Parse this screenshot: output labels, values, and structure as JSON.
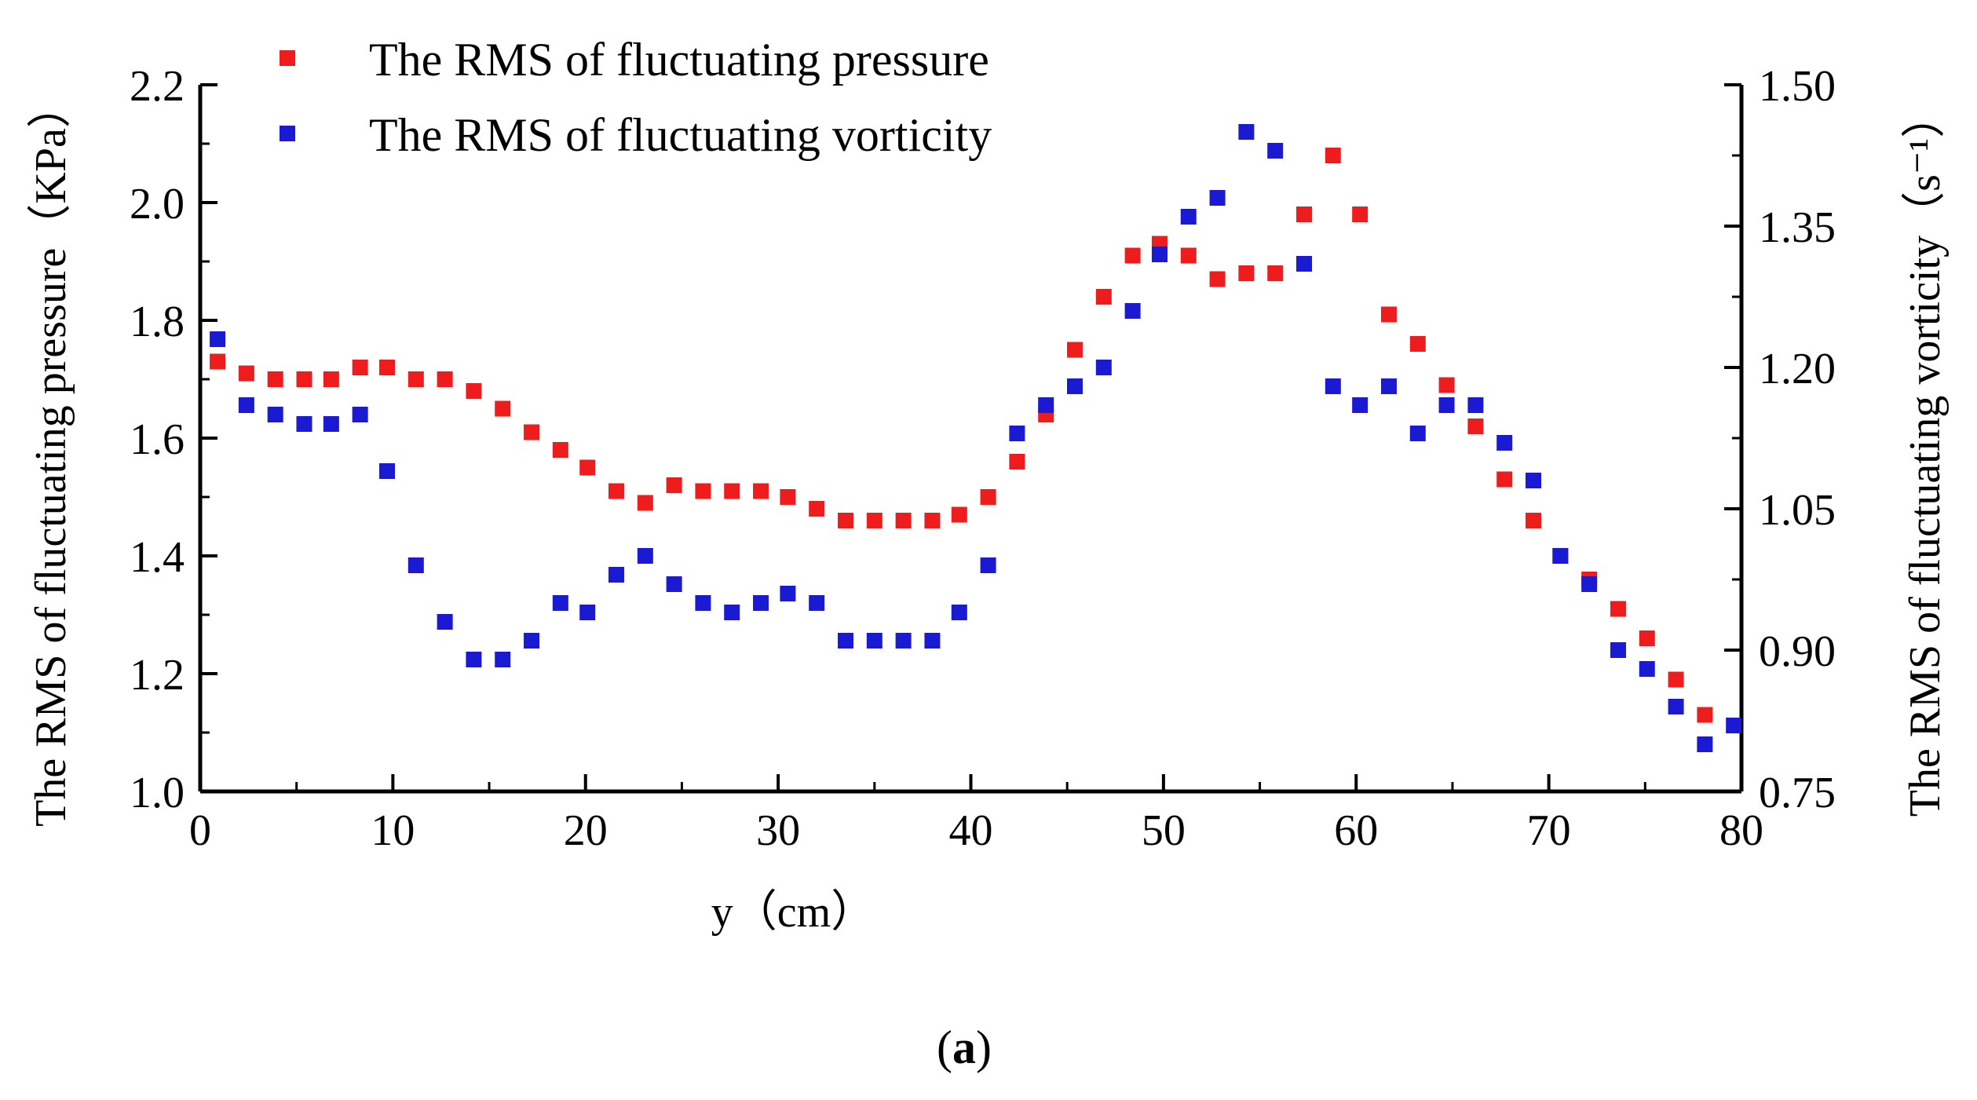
{
  "chart_data": {
    "type": "scatter",
    "xlabel": "y（cm）",
    "ylabel_left": "The RMS of fluctuating pressure（KPa）",
    "ylabel_right": "The RMS of fluctuating vorticity（s⁻¹）",
    "caption_open": "(",
    "caption_label": "a",
    "caption_close": ")",
    "xlim": [
      0,
      80
    ],
    "ylim_left": [
      1.0,
      2.2
    ],
    "ylim_right": [
      0.75,
      1.5
    ],
    "x_ticks": [
      "0",
      "10",
      "20",
      "30",
      "40",
      "50",
      "60",
      "70",
      "80"
    ],
    "y_left_ticks": [
      "1.0",
      "1.2",
      "1.4",
      "1.6",
      "1.8",
      "2.0",
      "2.2"
    ],
    "y_right_ticks": [
      "0.75",
      "0.90",
      "1.05",
      "1.20",
      "1.35",
      "1.50"
    ],
    "legend_position": "top-left",
    "series": [
      {
        "name": "The RMS of fluctuating pressure",
        "color": "#ee1c1c",
        "axis": "left",
        "x": [
          0.9,
          2.4,
          3.9,
          5.4,
          6.8,
          8.3,
          9.7,
          11.2,
          12.7,
          14.2,
          15.7,
          17.2,
          18.7,
          20.1,
          21.6,
          23.1,
          24.6,
          26.1,
          27.6,
          29.1,
          30.5,
          32.0,
          33.5,
          35.0,
          36.5,
          38.0,
          39.4,
          40.9,
          42.4,
          43.9,
          45.4,
          46.9,
          48.4,
          49.8,
          51.3,
          52.8,
          54.3,
          55.8,
          57.3,
          58.8,
          60.2,
          61.7,
          63.2,
          64.7,
          66.2,
          67.7,
          69.2,
          70.6,
          72.1,
          73.6,
          75.1,
          76.6,
          78.1
        ],
        "values": [
          1.73,
          1.71,
          1.7,
          1.7,
          1.7,
          1.72,
          1.72,
          1.7,
          1.7,
          1.68,
          1.65,
          1.61,
          1.58,
          1.55,
          1.51,
          1.49,
          1.52,
          1.51,
          1.51,
          1.51,
          1.5,
          1.48,
          1.46,
          1.46,
          1.46,
          1.46,
          1.47,
          1.5,
          1.56,
          1.64,
          1.75,
          1.84,
          1.91,
          1.93,
          1.91,
          1.87,
          1.88,
          1.88,
          1.98,
          2.08,
          1.98,
          1.81,
          1.76,
          1.69,
          1.62,
          1.53,
          1.46,
          1.4,
          1.36,
          1.31,
          1.26,
          1.19,
          1.13
        ]
      },
      {
        "name": "The RMS of fluctuating vorticity",
        "color": "#1a1ad2",
        "axis": "right",
        "x": [
          0.9,
          2.4,
          3.9,
          5.4,
          6.8,
          8.3,
          9.7,
          11.2,
          12.7,
          14.2,
          15.7,
          17.2,
          18.7,
          20.1,
          21.6,
          23.1,
          24.6,
          26.1,
          27.6,
          29.1,
          30.5,
          32.0,
          33.5,
          35.0,
          36.5,
          38.0,
          39.4,
          40.9,
          42.4,
          43.9,
          45.4,
          46.9,
          48.4,
          49.8,
          51.3,
          52.8,
          54.3,
          55.8,
          57.3,
          58.8,
          60.2,
          61.7,
          63.2,
          64.7,
          66.2,
          67.7,
          69.2,
          70.6,
          72.1,
          73.6,
          75.1,
          76.6,
          78.1,
          79.6
        ],
        "values": [
          1.23,
          1.16,
          1.15,
          1.14,
          1.14,
          1.15,
          1.09,
          0.99,
          0.93,
          0.89,
          0.89,
          0.91,
          0.95,
          0.94,
          0.98,
          1.0,
          0.97,
          0.95,
          0.94,
          0.95,
          0.96,
          0.95,
          0.91,
          0.91,
          0.91,
          0.91,
          0.94,
          0.99,
          1.13,
          1.16,
          1.18,
          1.2,
          1.26,
          1.32,
          1.36,
          1.38,
          1.45,
          1.43,
          1.31,
          1.18,
          1.16,
          1.18,
          1.13,
          1.16,
          1.16,
          1.12,
          1.08,
          1.0,
          0.97,
          0.9,
          0.88,
          0.84,
          0.8,
          0.82
        ]
      }
    ]
  }
}
